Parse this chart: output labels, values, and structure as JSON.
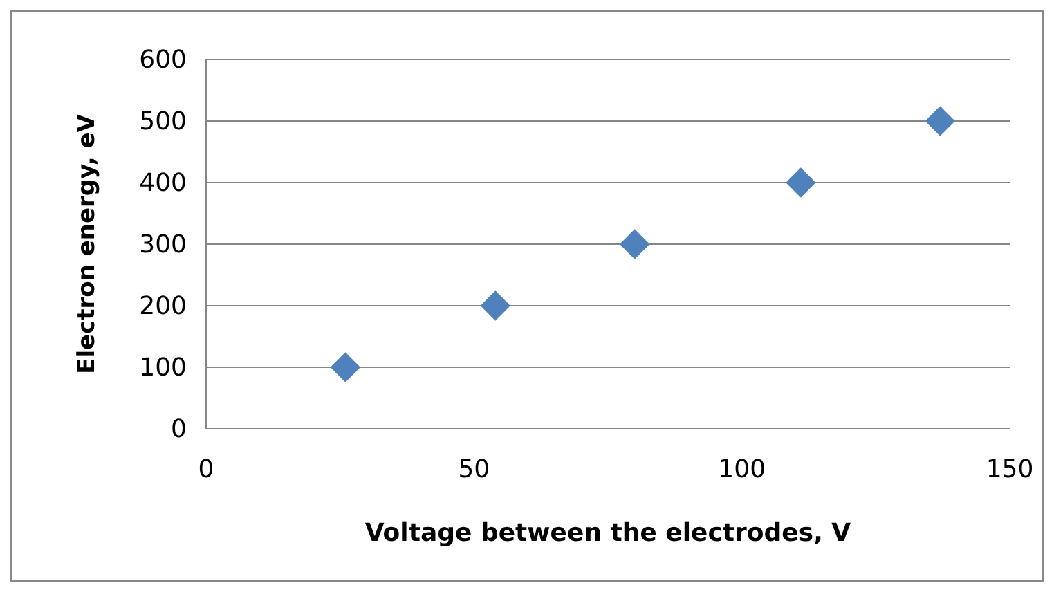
{
  "chart_data": {
    "type": "scatter",
    "xlabel": "Voltage between the electrodes, V",
    "ylabel": "Electron energy, eV",
    "x": [
      26,
      54,
      80,
      111,
      137
    ],
    "series": [
      {
        "color": "#4f81bd",
        "values": [
          100,
          200,
          300,
          400,
          500
        ]
      }
    ],
    "xlim": [
      0,
      150
    ],
    "xticks": [
      0,
      50,
      100,
      150
    ],
    "ylim": [
      0,
      600
    ],
    "yticks": [
      0,
      100,
      200,
      300,
      400,
      500,
      600
    ],
    "grid": "y",
    "marker": "diamond"
  }
}
